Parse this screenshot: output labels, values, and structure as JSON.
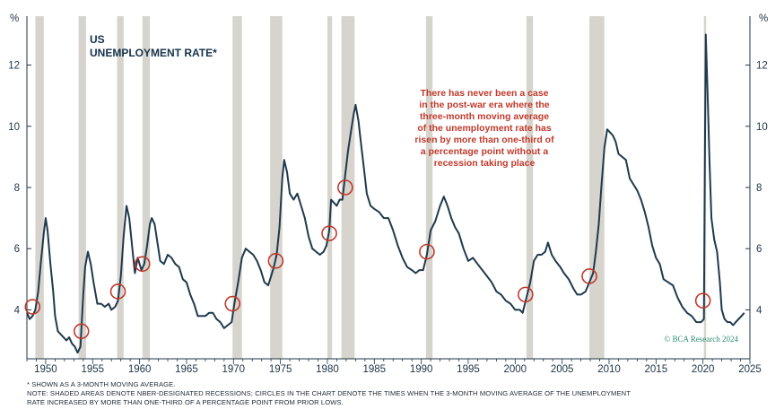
{
  "chart_data": {
    "type": "line",
    "title": "US",
    "subtitle": "UNEMPLOYMENT RATE*",
    "y_unit_left": "%",
    "y_unit_right": "%",
    "ylim": [
      2.4,
      13.6
    ],
    "xlim": [
      1948.0,
      2025.0
    ],
    "y_ticks": [
      4,
      6,
      8,
      10,
      12
    ],
    "y_tick_labels": [
      "4",
      "6",
      "8",
      "10",
      "12"
    ],
    "x_ticks": [
      1950,
      1955,
      1960,
      1965,
      1970,
      1975,
      1980,
      1985,
      1990,
      1995,
      2000,
      2005,
      2010,
      2015,
      2020,
      2025
    ],
    "x_tick_labels": [
      "1950",
      "1955",
      "1960",
      "1965",
      "1970",
      "1975",
      "1980",
      "1985",
      "1990",
      "1995",
      "2000",
      "2005",
      "2010",
      "2015",
      "2020",
      "2025"
    ],
    "grid": false,
    "series": [
      {
        "name": "US unemployment rate (3-month moving average)",
        "color": "#1f3a4d",
        "points": [
          [
            1948.0,
            3.9
          ],
          [
            1948.3,
            3.7
          ],
          [
            1948.6,
            3.8
          ],
          [
            1948.9,
            4.0
          ],
          [
            1949.2,
            4.6
          ],
          [
            1949.5,
            5.6
          ],
          [
            1949.8,
            6.5
          ],
          [
            1950.0,
            7.0
          ],
          [
            1950.2,
            6.6
          ],
          [
            1950.5,
            5.5
          ],
          [
            1950.8,
            4.6
          ],
          [
            1951.0,
            3.8
          ],
          [
            1951.3,
            3.3
          ],
          [
            1951.6,
            3.2
          ],
          [
            1951.9,
            3.1
          ],
          [
            1952.2,
            3.0
          ],
          [
            1952.5,
            3.1
          ],
          [
            1952.8,
            2.9
          ],
          [
            1953.1,
            2.8
          ],
          [
            1953.4,
            2.6
          ],
          [
            1953.7,
            2.8
          ],
          [
            1954.0,
            4.5
          ],
          [
            1954.2,
            5.4
          ],
          [
            1954.5,
            5.9
          ],
          [
            1954.8,
            5.5
          ],
          [
            1955.1,
            4.9
          ],
          [
            1955.5,
            4.2
          ],
          [
            1955.9,
            4.2
          ],
          [
            1956.3,
            4.1
          ],
          [
            1956.7,
            4.2
          ],
          [
            1957.0,
            4.0
          ],
          [
            1957.4,
            4.1
          ],
          [
            1957.7,
            4.3
          ],
          [
            1958.0,
            5.1
          ],
          [
            1958.3,
            6.4
          ],
          [
            1958.6,
            7.4
          ],
          [
            1958.9,
            7.0
          ],
          [
            1959.2,
            6.1
          ],
          [
            1959.5,
            5.2
          ],
          [
            1959.8,
            5.7
          ],
          [
            1960.2,
            5.3
          ],
          [
            1960.5,
            5.5
          ],
          [
            1960.8,
            6.1
          ],
          [
            1961.1,
            6.8
          ],
          [
            1961.3,
            7.0
          ],
          [
            1961.6,
            6.8
          ],
          [
            1961.9,
            6.2
          ],
          [
            1962.2,
            5.6
          ],
          [
            1962.6,
            5.5
          ],
          [
            1963.0,
            5.8
          ],
          [
            1963.4,
            5.7
          ],
          [
            1963.8,
            5.5
          ],
          [
            1964.2,
            5.4
          ],
          [
            1964.6,
            5.0
          ],
          [
            1965.0,
            4.9
          ],
          [
            1965.4,
            4.5
          ],
          [
            1965.8,
            4.2
          ],
          [
            1966.2,
            3.8
          ],
          [
            1966.6,
            3.8
          ],
          [
            1967.0,
            3.8
          ],
          [
            1967.4,
            3.9
          ],
          [
            1967.8,
            3.9
          ],
          [
            1968.2,
            3.7
          ],
          [
            1968.6,
            3.6
          ],
          [
            1969.0,
            3.4
          ],
          [
            1969.4,
            3.5
          ],
          [
            1969.8,
            3.6
          ],
          [
            1970.1,
            4.2
          ],
          [
            1970.5,
            4.9
          ],
          [
            1970.9,
            5.7
          ],
          [
            1971.3,
            6.0
          ],
          [
            1971.7,
            5.9
          ],
          [
            1972.1,
            5.8
          ],
          [
            1972.5,
            5.6
          ],
          [
            1972.9,
            5.3
          ],
          [
            1973.3,
            4.9
          ],
          [
            1973.7,
            4.8
          ],
          [
            1974.0,
            5.1
          ],
          [
            1974.3,
            5.4
          ],
          [
            1974.6,
            5.8
          ],
          [
            1974.9,
            6.7
          ],
          [
            1975.2,
            8.3
          ],
          [
            1975.4,
            8.9
          ],
          [
            1975.7,
            8.5
          ],
          [
            1976.0,
            7.8
          ],
          [
            1976.4,
            7.6
          ],
          [
            1976.8,
            7.8
          ],
          [
            1977.2,
            7.4
          ],
          [
            1977.6,
            7.0
          ],
          [
            1978.0,
            6.4
          ],
          [
            1978.4,
            6.0
          ],
          [
            1978.8,
            5.9
          ],
          [
            1979.2,
            5.8
          ],
          [
            1979.6,
            5.9
          ],
          [
            1979.9,
            6.1
          ],
          [
            1980.2,
            6.6
          ],
          [
            1980.4,
            7.6
          ],
          [
            1980.7,
            7.5
          ],
          [
            1981.0,
            7.4
          ],
          [
            1981.3,
            7.6
          ],
          [
            1981.6,
            7.6
          ],
          [
            1981.9,
            8.4
          ],
          [
            1982.2,
            9.2
          ],
          [
            1982.5,
            9.8
          ],
          [
            1982.8,
            10.4
          ],
          [
            1983.0,
            10.7
          ],
          [
            1983.3,
            10.2
          ],
          [
            1983.6,
            9.4
          ],
          [
            1983.9,
            8.6
          ],
          [
            1984.2,
            7.8
          ],
          [
            1984.6,
            7.4
          ],
          [
            1985.0,
            7.3
          ],
          [
            1985.5,
            7.2
          ],
          [
            1986.0,
            7.0
          ],
          [
            1986.5,
            7.0
          ],
          [
            1987.0,
            6.6
          ],
          [
            1987.5,
            6.1
          ],
          [
            1988.0,
            5.7
          ],
          [
            1988.5,
            5.4
          ],
          [
            1989.0,
            5.3
          ],
          [
            1989.4,
            5.2
          ],
          [
            1989.8,
            5.3
          ],
          [
            1990.2,
            5.3
          ],
          [
            1990.6,
            5.8
          ],
          [
            1991.0,
            6.6
          ],
          [
            1991.5,
            6.9
          ],
          [
            1992.0,
            7.4
          ],
          [
            1992.4,
            7.7
          ],
          [
            1992.8,
            7.4
          ],
          [
            1993.2,
            7.0
          ],
          [
            1993.6,
            6.7
          ],
          [
            1994.0,
            6.5
          ],
          [
            1994.5,
            6.0
          ],
          [
            1995.0,
            5.6
          ],
          [
            1995.5,
            5.7
          ],
          [
            1996.0,
            5.5
          ],
          [
            1996.5,
            5.3
          ],
          [
            1997.0,
            5.1
          ],
          [
            1997.5,
            4.9
          ],
          [
            1998.0,
            4.6
          ],
          [
            1998.5,
            4.5
          ],
          [
            1999.0,
            4.3
          ],
          [
            1999.5,
            4.2
          ],
          [
            2000.0,
            4.0
          ],
          [
            2000.5,
            4.0
          ],
          [
            2000.8,
            3.9
          ],
          [
            2001.2,
            4.4
          ],
          [
            2001.6,
            4.9
          ],
          [
            2002.0,
            5.6
          ],
          [
            2002.4,
            5.8
          ],
          [
            2002.8,
            5.8
          ],
          [
            2003.2,
            5.9
          ],
          [
            2003.5,
            6.2
          ],
          [
            2003.9,
            5.8
          ],
          [
            2004.3,
            5.6
          ],
          [
            2004.8,
            5.4
          ],
          [
            2005.2,
            5.2
          ],
          [
            2005.7,
            5.0
          ],
          [
            2006.2,
            4.7
          ],
          [
            2006.6,
            4.5
          ],
          [
            2007.0,
            4.5
          ],
          [
            2007.5,
            4.6
          ],
          [
            2007.9,
            4.9
          ],
          [
            2008.3,
            5.2
          ],
          [
            2008.6,
            5.9
          ],
          [
            2008.9,
            6.8
          ],
          [
            2009.2,
            8.1
          ],
          [
            2009.5,
            9.3
          ],
          [
            2009.8,
            9.9
          ],
          [
            2010.1,
            9.8
          ],
          [
            2010.4,
            9.7
          ],
          [
            2010.7,
            9.5
          ],
          [
            2011.0,
            9.1
          ],
          [
            2011.4,
            9.0
          ],
          [
            2011.8,
            8.9
          ],
          [
            2012.2,
            8.3
          ],
          [
            2012.6,
            8.1
          ],
          [
            2013.0,
            7.9
          ],
          [
            2013.4,
            7.6
          ],
          [
            2013.8,
            7.2
          ],
          [
            2014.2,
            6.7
          ],
          [
            2014.6,
            6.1
          ],
          [
            2015.0,
            5.7
          ],
          [
            2015.4,
            5.5
          ],
          [
            2015.8,
            5.0
          ],
          [
            2016.3,
            4.9
          ],
          [
            2016.8,
            4.8
          ],
          [
            2017.3,
            4.4
          ],
          [
            2017.8,
            4.1
          ],
          [
            2018.3,
            3.9
          ],
          [
            2018.8,
            3.8
          ],
          [
            2019.3,
            3.6
          ],
          [
            2019.8,
            3.6
          ],
          [
            2020.1,
            3.7
          ],
          [
            2020.2,
            9.0
          ],
          [
            2020.3,
            13.0
          ],
          [
            2020.5,
            11.0
          ],
          [
            2020.7,
            8.8
          ],
          [
            2020.9,
            7.0
          ],
          [
            2021.2,
            6.3
          ],
          [
            2021.5,
            5.9
          ],
          [
            2021.8,
            4.9
          ],
          [
            2022.0,
            4.0
          ],
          [
            2022.3,
            3.7
          ],
          [
            2022.6,
            3.6
          ],
          [
            2022.9,
            3.6
          ],
          [
            2023.2,
            3.5
          ],
          [
            2023.5,
            3.6
          ],
          [
            2023.8,
            3.7
          ],
          [
            2024.1,
            3.8
          ],
          [
            2024.4,
            3.9
          ]
        ]
      }
    ],
    "recessions": [
      [
        1948.9,
        1949.8
      ],
      [
        1953.5,
        1954.3
      ],
      [
        1957.6,
        1958.3
      ],
      [
        1960.3,
        1961.1
      ],
      [
        1969.9,
        1970.9
      ],
      [
        1973.9,
        1975.2
      ],
      [
        1980.0,
        1980.5
      ],
      [
        1981.5,
        1982.9
      ],
      [
        1990.5,
        1991.2
      ],
      [
        2001.2,
        2001.9
      ],
      [
        2007.9,
        2009.5
      ],
      [
        2020.1,
        2020.3
      ]
    ],
    "circles": [
      {
        "x": 1948.6,
        "y": 4.1
      },
      {
        "x": 1953.8,
        "y": 3.3
      },
      {
        "x": 1957.7,
        "y": 4.6
      },
      {
        "x": 1960.3,
        "y": 5.5
      },
      {
        "x": 1969.9,
        "y": 4.2
      },
      {
        "x": 1974.5,
        "y": 5.6
      },
      {
        "x": 1980.2,
        "y": 6.5
      },
      {
        "x": 1981.9,
        "y": 8.0
      },
      {
        "x": 1990.6,
        "y": 5.9
      },
      {
        "x": 2001.1,
        "y": 4.5
      },
      {
        "x": 2007.9,
        "y": 5.1
      },
      {
        "x": 2020.0,
        "y": 4.3
      }
    ],
    "annotation_lines": [
      "There has never been a case",
      "in the post-war era where the",
      "three-month moving average",
      "of the unemployment rate has",
      "risen by more than one-third of",
      "a percentage point without a",
      "recession taking place"
    ],
    "credit": "© BCA Research 2024",
    "colors": {
      "line": "#1f3a4d",
      "recession": "#d6d4cd",
      "circle": "#c0392b",
      "annotation": "#c0392b",
      "credit": "#2a8f73",
      "axis": "#1d3347"
    }
  },
  "notes": {
    "footnote": "* SHOWN AS A 3-MONTH MOVING AVERAGE.",
    "note_line1": "NOTE: SHADED AREAS DENOTE NBER-DESIGNATED RECESSIONS; CIRCLES IN THE CHART DENOTE THE TIMES WHEN THE 3-MONTH MOVING AVERAGE OF THE UNEMPLOYMENT",
    "note_line2": "RATE INCREASED BY MORE THAN ONE-THIRD OF A PERCENTAGE POINT FROM PRIOR LOWS."
  }
}
